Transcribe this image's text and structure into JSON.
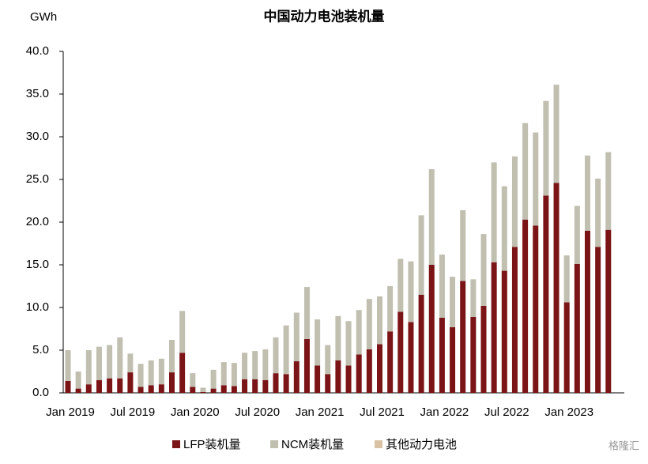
{
  "chart_data": {
    "type": "stacked_bar",
    "title": "中国动力电池装机量",
    "y_unit": "GWh",
    "watermark": "格隆汇",
    "categories": [
      "Jan 2019",
      null,
      null,
      null,
      null,
      null,
      "Jul 2019",
      null,
      null,
      null,
      null,
      null,
      "Jan 2020",
      null,
      null,
      null,
      null,
      null,
      "Jul 2020",
      null,
      null,
      null,
      null,
      null,
      "Jan 2021",
      null,
      null,
      null,
      null,
      null,
      "Jul 2021",
      null,
      null,
      null,
      null,
      null,
      "Jan 2022",
      null,
      null,
      null,
      null,
      null,
      "Jul 2022",
      null,
      null,
      null,
      null,
      null,
      "Jan 2023",
      null,
      null,
      null,
      null
    ],
    "series": [
      {
        "name": "LFP装机量",
        "color": "#7b1416",
        "values": [
          1.4,
          0.5,
          1.0,
          1.5,
          1.7,
          1.7,
          2.4,
          0.7,
          0.9,
          1.0,
          2.4,
          4.7,
          0.7,
          0.1,
          0.5,
          0.9,
          0.8,
          1.6,
          1.6,
          1.5,
          2.3,
          2.2,
          3.7,
          6.3,
          3.2,
          2.2,
          3.8,
          3.2,
          4.5,
          5.1,
          5.7,
          7.2,
          9.5,
          8.3,
          11.5,
          15.0,
          8.8,
          7.7,
          13.1,
          8.9,
          10.2,
          15.3,
          14.3,
          17.1,
          20.3,
          19.6,
          23.1,
          24.6,
          10.6,
          15.1,
          19.0,
          17.1,
          19.1
        ]
      },
      {
        "name": "NCM装机量",
        "color": "#c0bfb0",
        "values": [
          3.6,
          2.0,
          4.0,
          3.9,
          3.9,
          4.8,
          2.2,
          2.7,
          2.9,
          3.0,
          3.8,
          4.9,
          1.6,
          0.5,
          2.2,
          2.7,
          2.7,
          3.1,
          3.3,
          3.6,
          4.2,
          5.7,
          5.7,
          6.1,
          5.4,
          3.4,
          5.2,
          5.2,
          5.2,
          5.9,
          5.6,
          5.3,
          6.2,
          7.1,
          9.3,
          11.2,
          7.4,
          5.9,
          8.3,
          4.4,
          8.4,
          11.7,
          9.9,
          10.6,
          11.3,
          10.9,
          11.1,
          11.5,
          5.5,
          6.8,
          8.8,
          8.0,
          9.1
        ]
      },
      {
        "name": "其他动力电池",
        "color": "#d9c3a4",
        "values": [
          0,
          0,
          0,
          0,
          0,
          0,
          0,
          0,
          0,
          0,
          0,
          0,
          0,
          0,
          0,
          0,
          0,
          0,
          0,
          0,
          0,
          0,
          0,
          0,
          0,
          0,
          0,
          0,
          0,
          0,
          0,
          0,
          0,
          0,
          0,
          0,
          0,
          0,
          0,
          0,
          0,
          0,
          0,
          0,
          0,
          0,
          0,
          0,
          0,
          0,
          0,
          0,
          0
        ]
      }
    ],
    "ylim": [
      0,
      40
    ],
    "yticks": [
      {
        "value": 0,
        "label": "0.0"
      },
      {
        "value": 5,
        "label": "5.0"
      },
      {
        "value": 10,
        "label": "10.0"
      },
      {
        "value": 15,
        "label": "15.0"
      },
      {
        "value": 20,
        "label": "20.0"
      },
      {
        "value": 25,
        "label": "25.0"
      },
      {
        "value": 30,
        "label": "30.0"
      },
      {
        "value": 35,
        "label": "35.0"
      },
      {
        "value": 40,
        "label": "40.0"
      }
    ],
    "legend": "bottom"
  }
}
